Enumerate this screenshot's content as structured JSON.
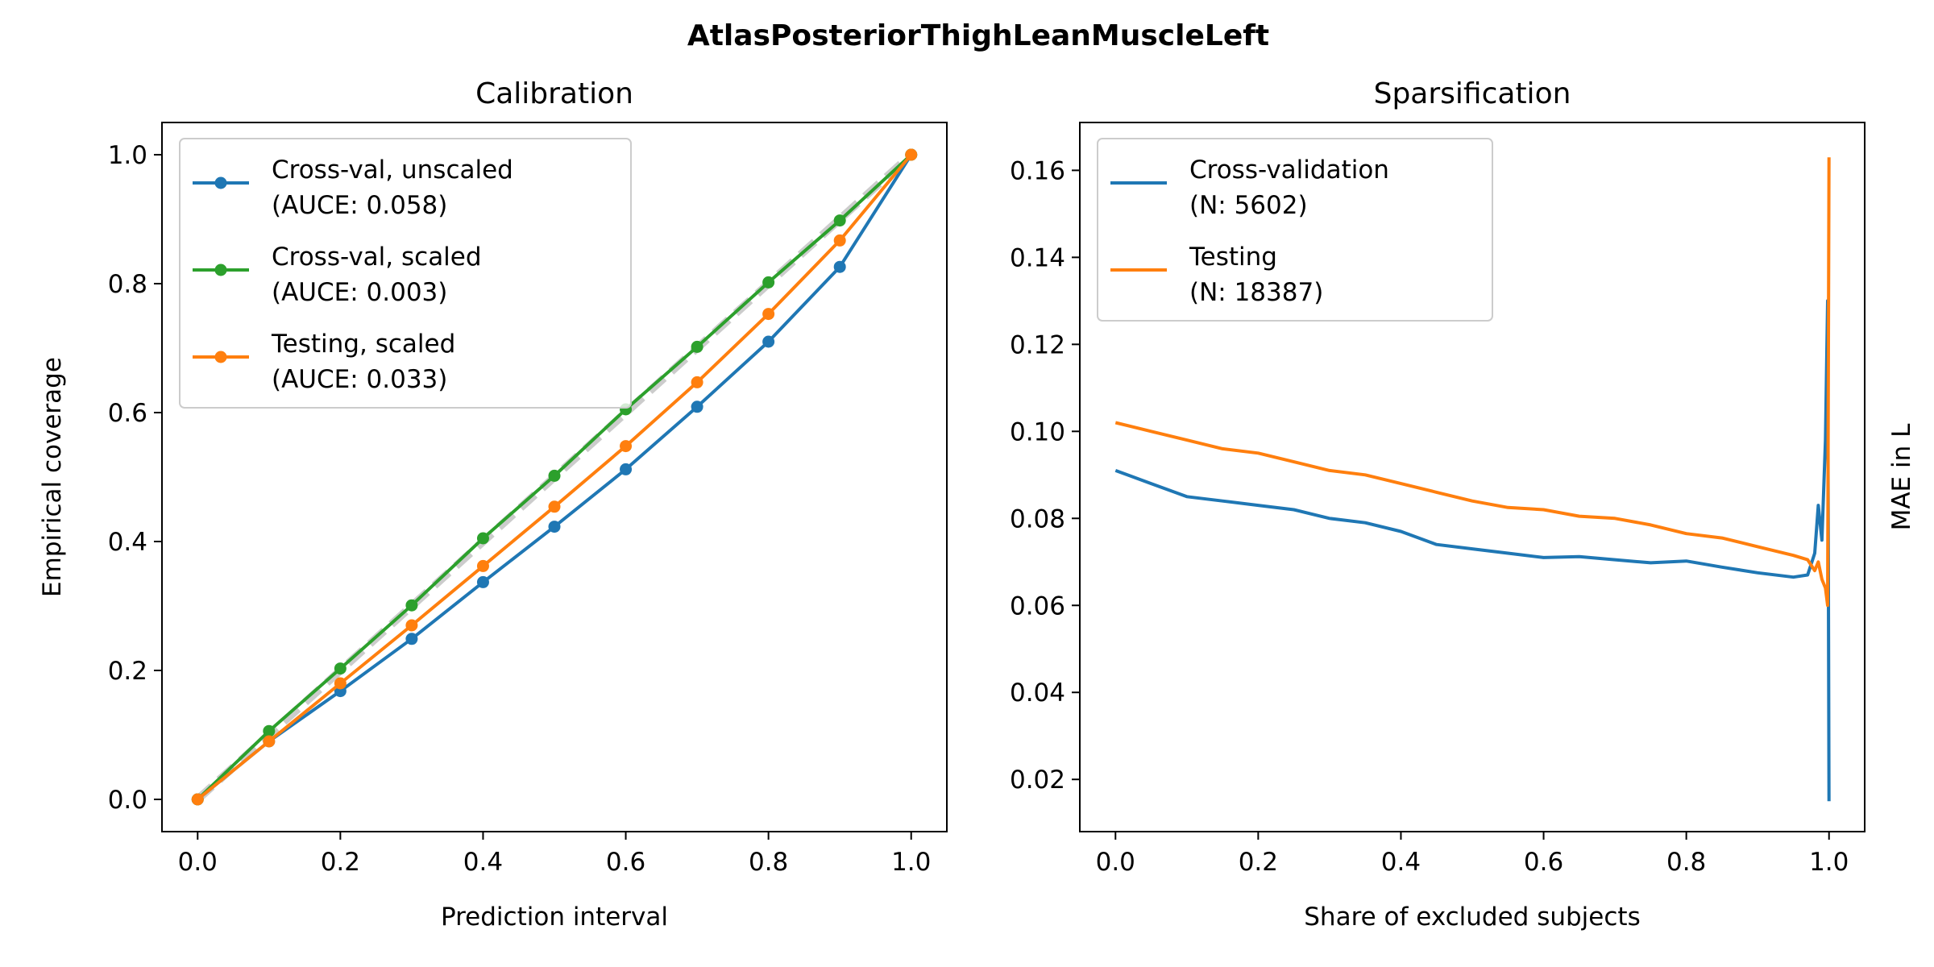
{
  "suptitle": "AtlasPosteriorThighLeanMuscleLeft",
  "chart_data": [
    {
      "type": "line",
      "title": "Calibration",
      "xlabel": "Prediction interval",
      "ylabel": "Empirical coverage",
      "xlim": [
        -0.05,
        1.05
      ],
      "ylim": [
        -0.05,
        1.05
      ],
      "xticks": [
        "0.0",
        "0.2",
        "0.4",
        "0.6",
        "0.8",
        "1.0"
      ],
      "yticks": [
        "0.0",
        "0.2",
        "0.4",
        "0.6",
        "0.8",
        "1.0"
      ],
      "legend_position": "top-left",
      "reference_line": {
        "x": [
          0,
          1
        ],
        "y": [
          0,
          1
        ],
        "color": "#cccccc",
        "style": "dashed"
      },
      "x": [
        0.0,
        0.1,
        0.2,
        0.3,
        0.4,
        0.5,
        0.6,
        0.7,
        0.8,
        0.9,
        1.0
      ],
      "series": [
        {
          "name": "Cross-val, unscaled",
          "stat": "(AUCE: 0.058)",
          "color": "#1f77b4",
          "values": [
            0.0,
            0.09,
            0.168,
            0.249,
            0.337,
            0.423,
            0.512,
            0.609,
            0.71,
            0.826,
            1.0
          ]
        },
        {
          "name": "Cross-val, scaled",
          "stat": "(AUCE: 0.003)",
          "color": "#2ca02c",
          "values": [
            0.0,
            0.106,
            0.203,
            0.301,
            0.405,
            0.502,
            0.605,
            0.702,
            0.802,
            0.898,
            1.0
          ]
        },
        {
          "name": "Testing, scaled",
          "stat": "(AUCE: 0.033)",
          "color": "#ff7f0e",
          "values": [
            0.0,
            0.09,
            0.18,
            0.27,
            0.362,
            0.454,
            0.548,
            0.647,
            0.753,
            0.867,
            1.0
          ]
        }
      ]
    },
    {
      "type": "line",
      "title": "Sparsification",
      "xlabel": "Share of excluded subjects",
      "ylabel": "MAE in L",
      "ylabel_position": "right",
      "xlim": [
        -0.05,
        1.05
      ],
      "ylim": [
        0.008,
        0.171
      ],
      "xticks": [
        "0.0",
        "0.2",
        "0.4",
        "0.6",
        "0.8",
        "1.0"
      ],
      "yticks": [
        "0.02",
        "0.04",
        "0.06",
        "0.08",
        "0.10",
        "0.12",
        "0.14",
        "0.16"
      ],
      "legend_position": "top-left",
      "series": [
        {
          "name": "Cross-validation",
          "stat": "(N: 5602)",
          "color": "#1f77b4",
          "x": [
            0.0,
            0.05,
            0.1,
            0.15,
            0.2,
            0.25,
            0.3,
            0.35,
            0.4,
            0.45,
            0.5,
            0.55,
            0.6,
            0.65,
            0.7,
            0.75,
            0.8,
            0.85,
            0.9,
            0.95,
            0.97,
            0.98,
            0.985,
            0.99,
            0.995,
            0.998,
            1.0
          ],
          "values": [
            0.091,
            0.088,
            0.085,
            0.084,
            0.083,
            0.082,
            0.08,
            0.079,
            0.077,
            0.074,
            0.073,
            0.072,
            0.071,
            0.0712,
            0.0705,
            0.0698,
            0.0702,
            0.0688,
            0.0675,
            0.0665,
            0.067,
            0.072,
            0.083,
            0.075,
            0.098,
            0.13,
            0.015
          ]
        },
        {
          "name": "Testing",
          "stat": "(N: 18387)",
          "color": "#ff7f0e",
          "x": [
            0.0,
            0.05,
            0.1,
            0.15,
            0.2,
            0.25,
            0.3,
            0.35,
            0.4,
            0.45,
            0.5,
            0.55,
            0.6,
            0.65,
            0.7,
            0.75,
            0.8,
            0.85,
            0.9,
            0.95,
            0.97,
            0.98,
            0.985,
            0.99,
            0.995,
            0.998,
            1.0
          ],
          "values": [
            0.102,
            0.1,
            0.098,
            0.096,
            0.095,
            0.093,
            0.091,
            0.09,
            0.088,
            0.086,
            0.084,
            0.0825,
            0.082,
            0.0805,
            0.08,
            0.0785,
            0.0765,
            0.0755,
            0.0735,
            0.0715,
            0.0705,
            0.068,
            0.07,
            0.066,
            0.064,
            0.06,
            0.163
          ]
        }
      ]
    }
  ]
}
